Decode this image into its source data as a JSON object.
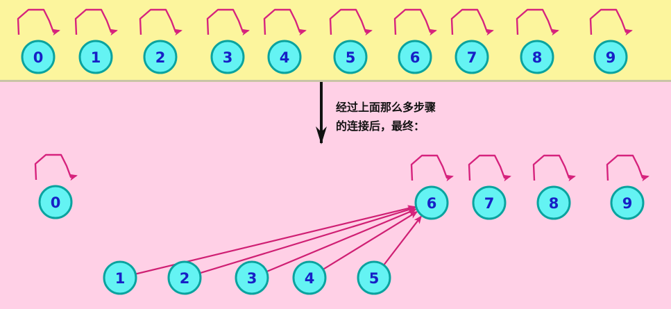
{
  "before": {
    "nodes": [
      "0",
      "1",
      "2",
      "3",
      "4",
      "5",
      "6",
      "7",
      "8",
      "9"
    ]
  },
  "caption": {
    "line1": "经过上面那么多步骤",
    "line2": "的连接后，最终："
  },
  "after": {
    "roots": [
      "0",
      "6",
      "7",
      "8",
      "9"
    ],
    "children": [
      "1",
      "2",
      "3",
      "4",
      "5"
    ],
    "edges": [
      {
        "from": "1",
        "to": "6"
      },
      {
        "from": "2",
        "to": "6"
      },
      {
        "from": "3",
        "to": "6"
      },
      {
        "from": "4",
        "to": "6"
      },
      {
        "from": "5",
        "to": "6"
      }
    ]
  },
  "colors": {
    "top_band": "#fcf59d",
    "bottom_band": "#ffd0e6",
    "node_fill": "#64f3f3",
    "node_stroke": "#0aa39f",
    "node_text": "#1720c6",
    "arrow": "#d6237d"
  }
}
